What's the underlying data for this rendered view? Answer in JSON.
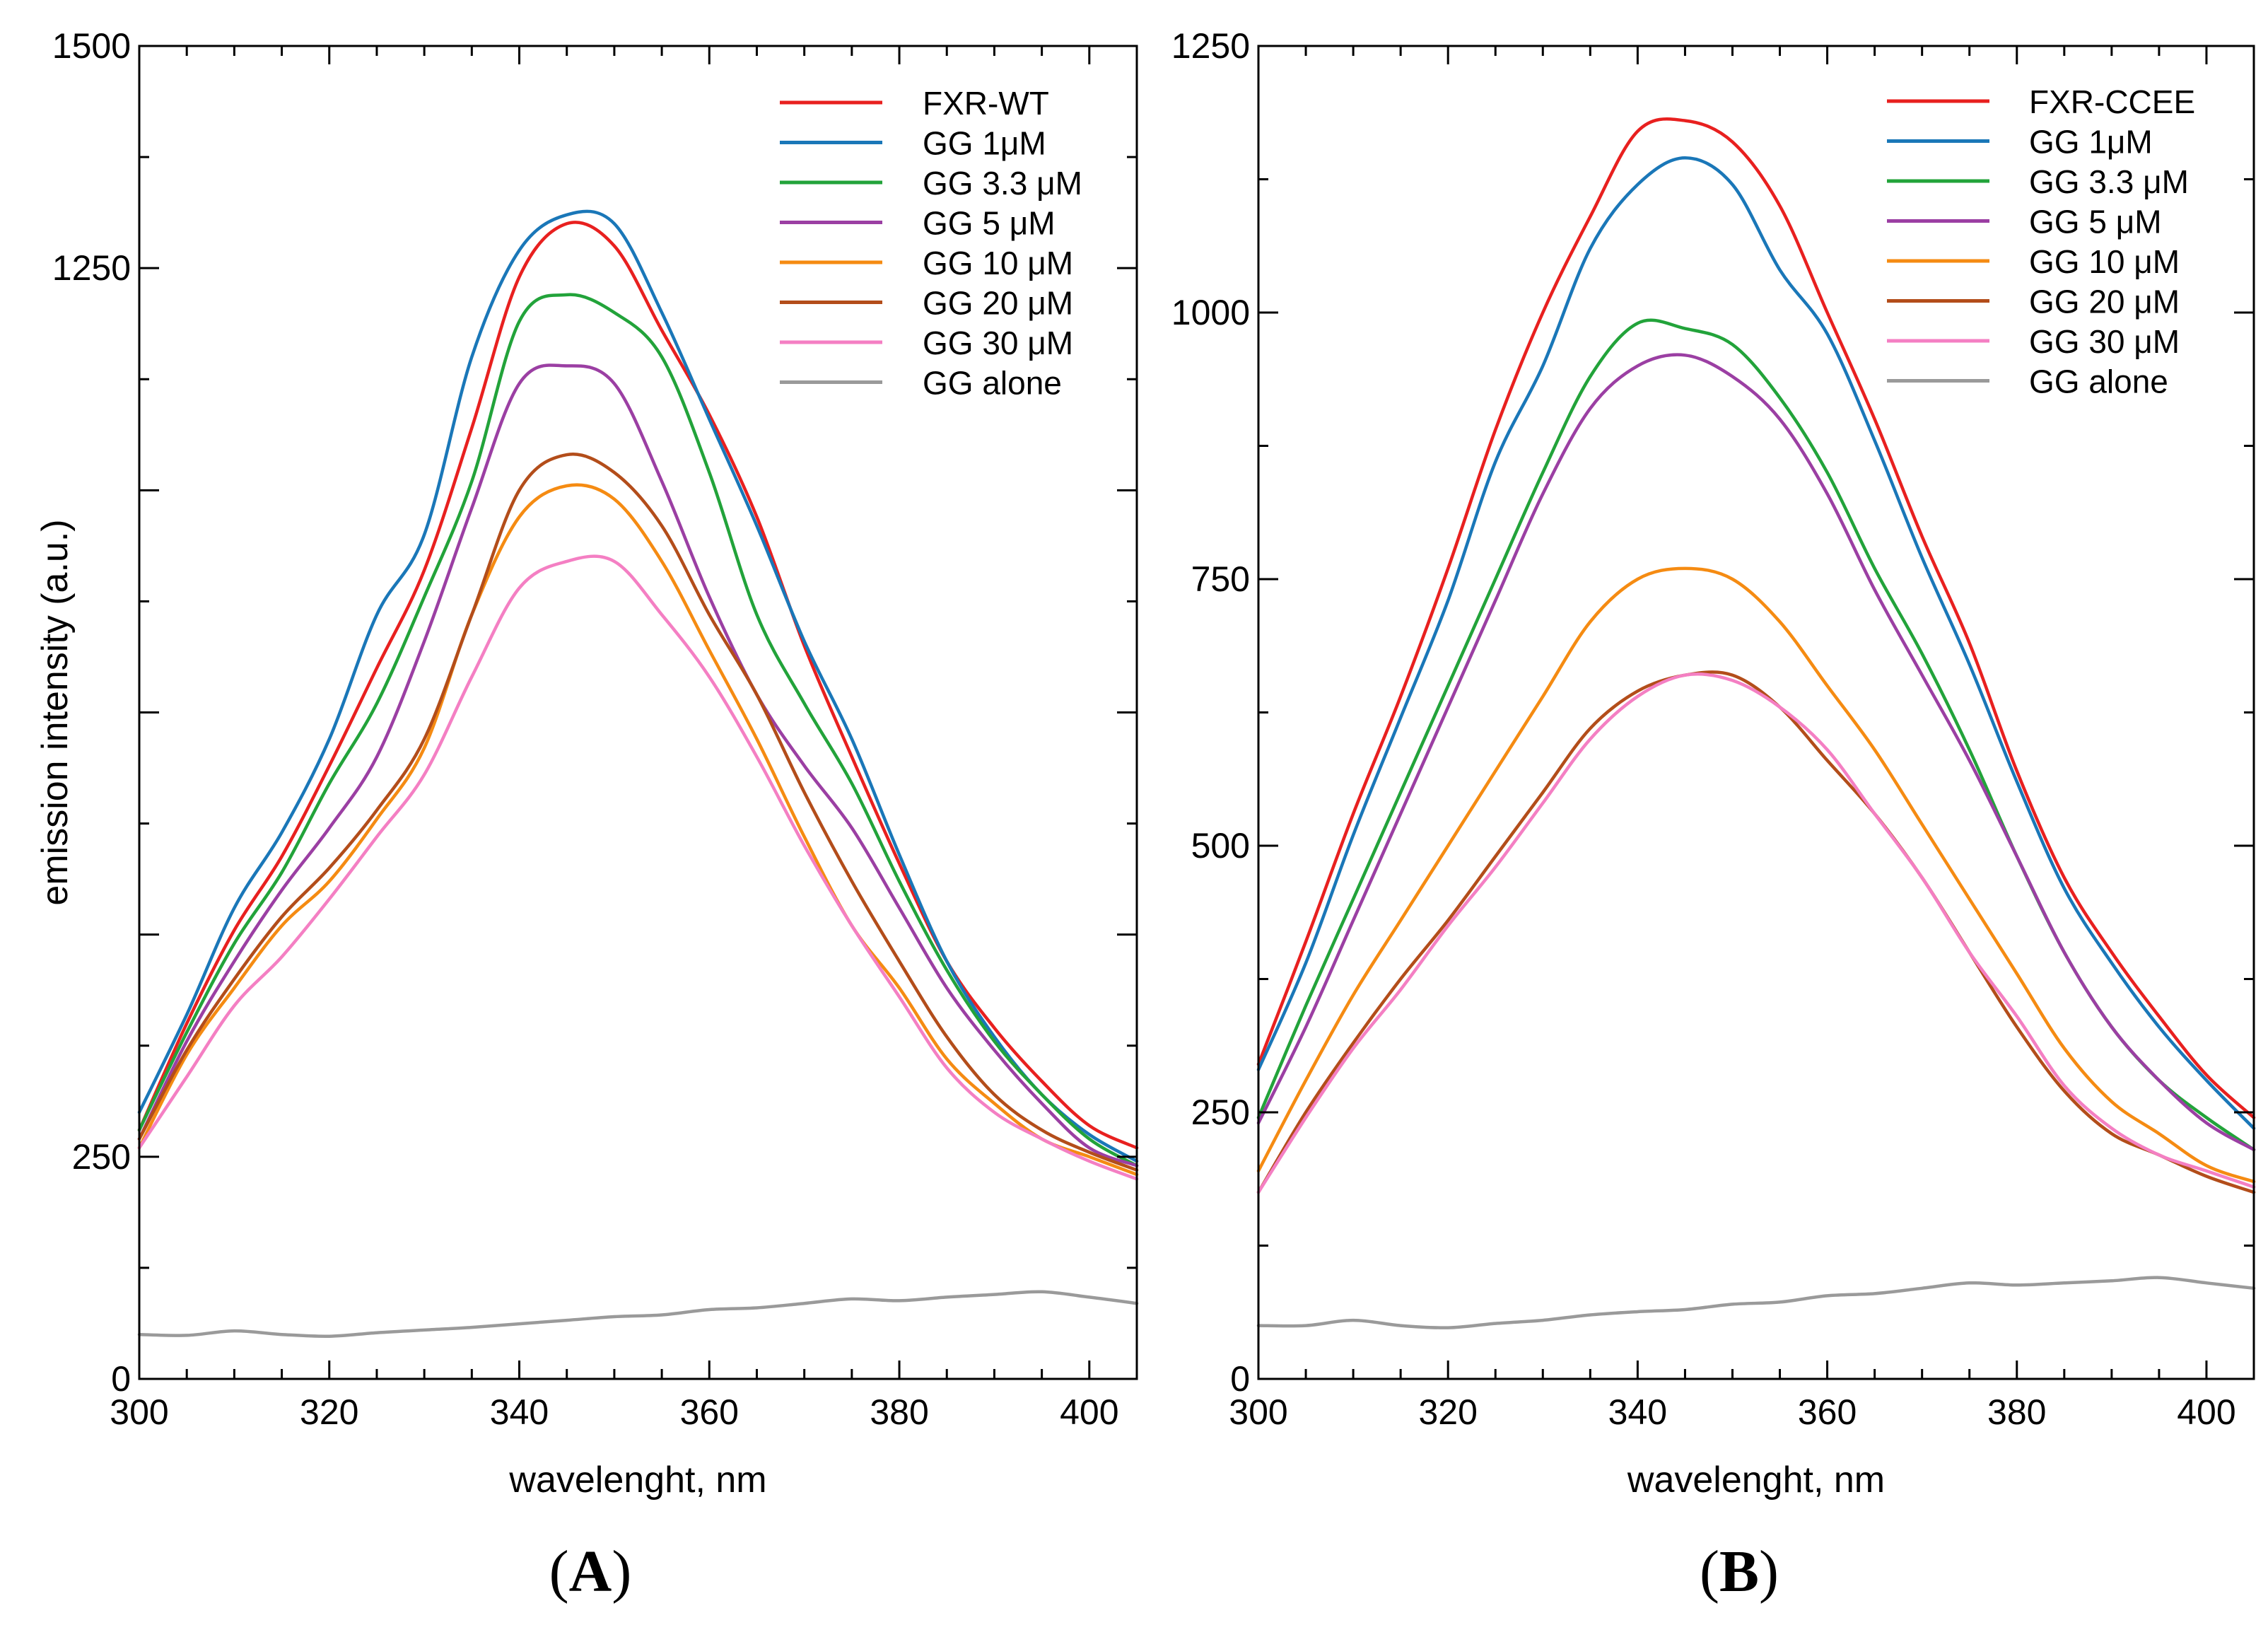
{
  "chart_data": [
    {
      "type": "line",
      "panel_label": "A",
      "xlabel": "wavelenght, nm",
      "ylabel": "emission intensity (a.u.)",
      "xlim": [
        300,
        405
      ],
      "ylim": [
        0,
        1500
      ],
      "x_ticks": [
        300,
        320,
        340,
        360,
        380,
        400
      ],
      "y_ticks_labeled": [
        0,
        250,
        1250,
        1500
      ],
      "y_ticks_minor": [
        500,
        750,
        1000
      ],
      "legend_position": "top-right",
      "x": [
        300,
        305,
        310,
        315,
        320,
        325,
        330,
        335,
        340,
        345,
        350,
        355,
        360,
        365,
        370,
        375,
        380,
        385,
        390,
        395,
        400,
        405
      ],
      "series": [
        {
          "name": "FXR-WT",
          "color": "#e8201f",
          "values": [
            280,
            400,
            505,
            588,
            690,
            800,
            910,
            1070,
            1240,
            1300,
            1275,
            1180,
            1085,
            970,
            825,
            700,
            580,
            470,
            395,
            335,
            285,
            260
          ]
        },
        {
          "name": "GG 1μM",
          "color": "#1a77b8",
          "values": [
            300,
            410,
            530,
            615,
            720,
            860,
            950,
            1150,
            1270,
            1310,
            1300,
            1200,
            1080,
            960,
            830,
            720,
            590,
            470,
            385,
            320,
            275,
            245
          ]
        },
        {
          "name": "GG 3.3 μM",
          "color": "#22a33a",
          "values": [
            280,
            390,
            490,
            570,
            670,
            760,
            880,
            1010,
            1190,
            1220,
            1200,
            1150,
            1020,
            860,
            760,
            670,
            560,
            460,
            380,
            320,
            270,
            240
          ]
        },
        {
          "name": "GG 5 μM",
          "color": "#9b3fa3",
          "values": [
            270,
            380,
            470,
            550,
            620,
            700,
            830,
            980,
            1120,
            1140,
            1120,
            1010,
            880,
            770,
            690,
            620,
            530,
            440,
            370,
            310,
            260,
            240
          ]
        },
        {
          "name": "GG 10 μM",
          "color": "#f58b12",
          "values": [
            260,
            365,
            440,
            510,
            560,
            630,
            710,
            860,
            970,
            1005,
            990,
            920,
            820,
            720,
            610,
            510,
            440,
            360,
            310,
            270,
            250,
            230
          ]
        },
        {
          "name": "GG 20 μM",
          "color": "#b34d1a",
          "values": [
            270,
            370,
            450,
            520,
            575,
            640,
            720,
            860,
            1000,
            1040,
            1020,
            960,
            860,
            770,
            660,
            560,
            470,
            385,
            320,
            280,
            255,
            235
          ]
        },
        {
          "name": "GG 30 μM",
          "color": "#f47fc3",
          "values": [
            260,
            340,
            420,
            475,
            540,
            610,
            680,
            790,
            890,
            920,
            920,
            860,
            790,
            700,
            600,
            510,
            430,
            350,
            300,
            270,
            245,
            225
          ]
        },
        {
          "name": "GG alone",
          "color": "#9a9a9a",
          "values": [
            50,
            49,
            54,
            50,
            48,
            52,
            55,
            58,
            62,
            66,
            70,
            72,
            78,
            80,
            85,
            90,
            88,
            92,
            95,
            98,
            92,
            85
          ]
        }
      ]
    },
    {
      "type": "line",
      "panel_label": "B",
      "xlabel": "wavelenght, nm",
      "ylabel": "",
      "xlim": [
        300,
        405
      ],
      "ylim": [
        0,
        1250
      ],
      "x_ticks": [
        300,
        320,
        340,
        360,
        380,
        400
      ],
      "y_ticks_labeled": [
        0,
        250,
        500,
        750,
        1000,
        1250
      ],
      "legend_position": "top-right",
      "x": [
        300,
        305,
        310,
        315,
        320,
        325,
        330,
        335,
        340,
        345,
        350,
        355,
        360,
        365,
        370,
        375,
        380,
        385,
        390,
        395,
        400,
        405
      ],
      "series": [
        {
          "name": "FXR-CCEE",
          "color": "#e8201f",
          "values": [
            295,
            410,
            530,
            640,
            760,
            890,
            1000,
            1090,
            1170,
            1180,
            1160,
            1100,
            1000,
            900,
            790,
            690,
            570,
            470,
            400,
            340,
            285,
            245
          ]
        },
        {
          "name": "GG 1μM",
          "color": "#1a77b8",
          "values": [
            290,
            390,
            510,
            620,
            730,
            860,
            950,
            1060,
            1120,
            1145,
            1120,
            1040,
            980,
            880,
            770,
            670,
            560,
            460,
            390,
            330,
            280,
            235
          ]
        },
        {
          "name": "GG 3.3 μM",
          "color": "#22a33a",
          "values": [
            245,
            350,
            450,
            550,
            650,
            750,
            850,
            940,
            990,
            985,
            970,
            920,
            850,
            760,
            680,
            590,
            490,
            400,
            330,
            280,
            245,
            215
          ]
        },
        {
          "name": "GG 5 μM",
          "color": "#9b3fa3",
          "values": [
            240,
            330,
            430,
            530,
            630,
            730,
            830,
            910,
            950,
            960,
            940,
            900,
            830,
            740,
            660,
            580,
            490,
            400,
            330,
            280,
            240,
            215
          ]
        },
        {
          "name": "GG 10 μM",
          "color": "#f58b12",
          "values": [
            195,
            280,
            360,
            430,
            500,
            570,
            640,
            710,
            750,
            760,
            750,
            710,
            650,
            590,
            520,
            450,
            380,
            310,
            260,
            230,
            200,
            185
          ]
        },
        {
          "name": "GG 20 μM",
          "color": "#b34d1a",
          "values": [
            175,
            250,
            315,
            375,
            430,
            490,
            550,
            610,
            645,
            660,
            660,
            630,
            580,
            530,
            470,
            400,
            330,
            270,
            230,
            210,
            190,
            175
          ]
        },
        {
          "name": "GG 30 μM",
          "color": "#f47fc3",
          "values": [
            175,
            245,
            310,
            365,
            425,
            480,
            540,
            600,
            640,
            660,
            655,
            630,
            590,
            530,
            470,
            400,
            340,
            275,
            235,
            210,
            195,
            180
          ]
        },
        {
          "name": "GG alone",
          "color": "#9a9a9a",
          "values": [
            50,
            50,
            55,
            50,
            48,
            52,
            55,
            60,
            63,
            65,
            70,
            72,
            78,
            80,
            85,
            90,
            88,
            90,
            92,
            95,
            90,
            85
          ]
        }
      ]
    }
  ]
}
